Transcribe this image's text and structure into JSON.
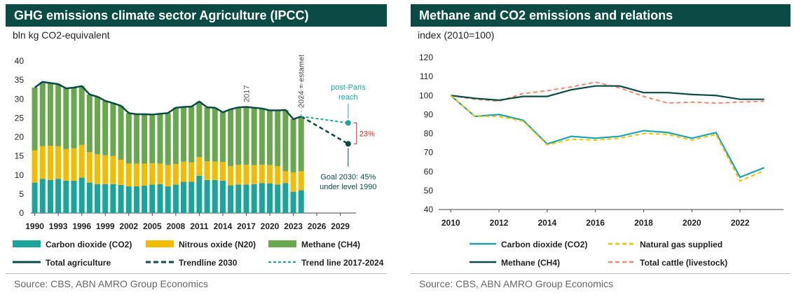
{
  "left_panel": {
    "title": "GHG emissions climate sector Agriculture (IPCC)",
    "unit": "bln kg CO2-equivalent",
    "source": "Source: CBS, ABN AMRO Group Economics",
    "annotations": {
      "year_2017": "2017",
      "estimate": "2024 = estamet",
      "post_paris": "post-Paris\nreach",
      "gap_pct": "23%",
      "goal": "Goal 2030: 45%\nunder level 1990"
    },
    "colors": {
      "co2": "#1aa59c",
      "n2o": "#f2bd00",
      "ch4": "#6aa84f",
      "total": "#0a4c45",
      "trend2030": "#0a4c45",
      "trend2017": "#1aa59c",
      "gap": "#e02020"
    }
  },
  "right_panel": {
    "title": "Methane and CO2 emissions and relations",
    "unit": "index (2010=100)",
    "source": "Source: CBS, ABN AMRO Group Economics",
    "colors": {
      "co2": "#1aa5b0",
      "gas": "#f2c200",
      "ch4": "#0a4c45",
      "cattle": "#f08a70"
    }
  },
  "chart_data": [
    {
      "type": "bar",
      "title": "GHG emissions climate sector Agriculture (IPCC)",
      "ylabel": "bln kg CO2-equivalent",
      "ylim": [
        0,
        40
      ],
      "yticks": [
        0,
        5,
        10,
        15,
        20,
        25,
        30,
        35,
        40
      ],
      "xticks": [
        "1990",
        "1993",
        "1996",
        "1999",
        "2002",
        "2005",
        "2008",
        "2011",
        "2014",
        "2017",
        "2020",
        "2023",
        "2026",
        "2029"
      ],
      "categories": [
        1990,
        1991,
        1992,
        1993,
        1994,
        1995,
        1996,
        1997,
        1998,
        1999,
        2000,
        2001,
        2002,
        2003,
        2004,
        2005,
        2006,
        2007,
        2008,
        2009,
        2010,
        2011,
        2012,
        2013,
        2014,
        2015,
        2016,
        2017,
        2018,
        2019,
        2020,
        2021,
        2022,
        2023,
        2024
      ],
      "series": [
        {
          "name": "Carbon dioxide (CO2)",
          "stack": true,
          "values": [
            8.0,
            9.0,
            8.7,
            9.0,
            8.5,
            8.5,
            9.3,
            8.0,
            7.6,
            7.6,
            7.6,
            7.4,
            7.0,
            7.0,
            7.2,
            7.5,
            7.6,
            7.0,
            7.5,
            8.2,
            8.2,
            9.8,
            8.7,
            8.7,
            8.5,
            7.3,
            7.5,
            7.5,
            7.6,
            7.9,
            7.8,
            7.5,
            7.9,
            5.6,
            6.0
          ]
        },
        {
          "name": "Nitrous oxide (N20)",
          "stack": true,
          "values": [
            8.5,
            8.6,
            9.0,
            8.6,
            8.3,
            8.5,
            8.6,
            8.0,
            7.9,
            7.6,
            7.4,
            6.6,
            6.0,
            6.0,
            5.8,
            5.6,
            5.4,
            5.6,
            5.4,
            5.3,
            5.1,
            4.9,
            4.9,
            4.8,
            4.9,
            5.0,
            5.2,
            5.2,
            5.0,
            4.8,
            4.8,
            4.8,
            3.1,
            5.1,
            5.0
          ]
        },
        {
          "name": "Methane (CH4)",
          "stack": true,
          "values": [
            16.5,
            16.9,
            16.5,
            16.3,
            16.0,
            16.0,
            15.5,
            15.2,
            15.1,
            14.3,
            13.9,
            14.2,
            13.3,
            13.0,
            13.0,
            12.8,
            13.1,
            13.7,
            14.8,
            14.4,
            14.7,
            14.6,
            14.2,
            14.2,
            13.1,
            15.0,
            15.1,
            15.2,
            15.1,
            14.8,
            14.4,
            14.7,
            16.1,
            14.0,
            14.4
          ]
        },
        {
          "name": "Total agriculture",
          "type": "line",
          "values": [
            33.0,
            34.5,
            34.2,
            33.9,
            32.8,
            33.0,
            33.4,
            31.2,
            30.6,
            29.5,
            28.9,
            28.2,
            26.3,
            26.0,
            26.0,
            25.9,
            26.1,
            26.3,
            27.7,
            27.9,
            28.0,
            29.3,
            27.8,
            27.7,
            26.5,
            27.3,
            27.8,
            27.9,
            27.7,
            27.5,
            27.0,
            27.0,
            27.1,
            24.7,
            25.4
          ]
        },
        {
          "name": "Trendline 2030",
          "type": "line",
          "x": [
            2024,
            2030
          ],
          "values": [
            25.4,
            18.2
          ]
        },
        {
          "name": "Trend line 2017-2024",
          "type": "line",
          "x": [
            2024,
            2030
          ],
          "values": [
            25.4,
            23.7
          ]
        }
      ]
    },
    {
      "type": "line",
      "title": "Methane and CO2 emissions and relations",
      "ylabel": "index (2010=100)",
      "ylim": [
        40,
        120
      ],
      "yticks": [
        40,
        50,
        60,
        70,
        80,
        90,
        100,
        110,
        120
      ],
      "xticks": [
        "2010",
        "2012",
        "2014",
        "2016",
        "2018",
        "2020",
        "2022"
      ],
      "x": [
        2010,
        2011,
        2012,
        2013,
        2014,
        2015,
        2016,
        2017,
        2018,
        2019,
        2020,
        2021,
        2022,
        2023
      ],
      "series": [
        {
          "name": "Carbon dioxide (CO2)",
          "values": [
            100,
            89,
            90,
            87,
            74.5,
            78.5,
            77.5,
            78.5,
            81.5,
            80.5,
            77.5,
            80.5,
            57,
            62
          ]
        },
        {
          "name": "Natural gas supplied",
          "dash": true,
          "values": [
            100,
            89,
            89,
            86.5,
            74,
            77,
            76.5,
            77.5,
            80,
            79.5,
            76.5,
            79.5,
            55,
            60.5
          ]
        },
        {
          "name": "Methane (CH4)",
          "values": [
            100,
            98.5,
            97.5,
            99.5,
            99.5,
            103,
            105,
            105,
            101.5,
            101.5,
            100.5,
            100,
            98,
            98
          ]
        },
        {
          "name": "Total cattle (livestock)",
          "dash": true,
          "values": [
            100,
            98,
            97,
            101,
            102.5,
            104.5,
            107,
            104,
            99.5,
            96,
            96.5,
            96,
            96.5,
            97
          ]
        }
      ]
    }
  ]
}
